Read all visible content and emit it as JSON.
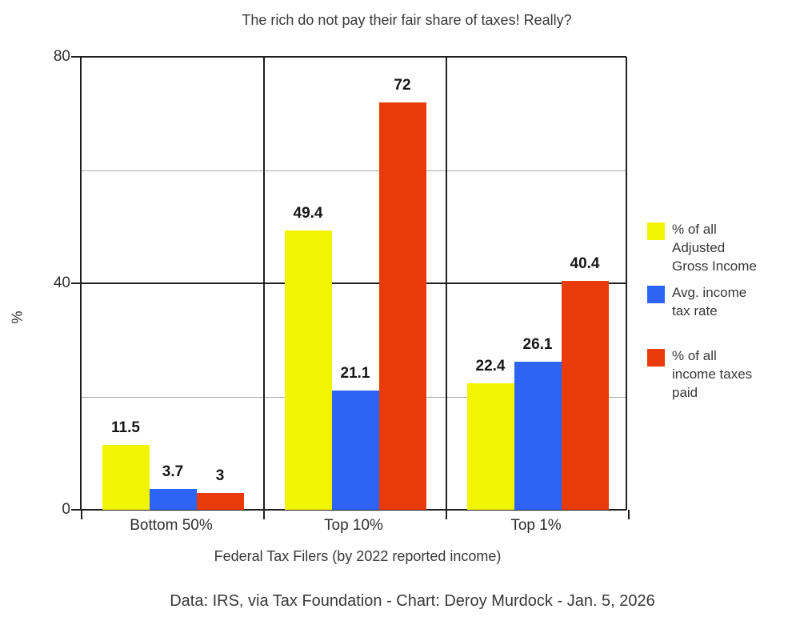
{
  "chart_data": {
    "type": "bar",
    "title": "The rich do not pay their fair share of taxes! Really?",
    "xlabel": "Federal Tax Filers (by 2022 reported income)",
    "ylabel": "%",
    "ylim": [
      0,
      80
    ],
    "yticks_major": [
      0,
      40,
      80
    ],
    "gridlines_minor": [
      20,
      60
    ],
    "grid": "horizontal",
    "legend_position": "right",
    "categories": [
      "Bottom 50%",
      "Top 10%",
      "Top 1%"
    ],
    "series": [
      {
        "name": "% of all Adjusted Gross Income",
        "name_lines": [
          "% of all",
          "Adjusted",
          "Gross Income"
        ],
        "color": "#f2f500",
        "values": [
          11.5,
          49.4,
          22.4
        ]
      },
      {
        "name": "Avg. income tax rate",
        "name_lines": [
          "Avg. income",
          "tax rate"
        ],
        "color": "#2e64f4",
        "values": [
          3.7,
          21.1,
          26.1
        ]
      },
      {
        "name": "% of all income taxes paid",
        "name_lines": [
          "% of all",
          "income taxes",
          "paid"
        ],
        "color": "#e93b09",
        "values": [
          3,
          72,
          40.4
        ]
      }
    ]
  },
  "footer": "Data: IRS, via Tax Foundation - Chart: Deroy Murdock - Jan. 5, 2026"
}
